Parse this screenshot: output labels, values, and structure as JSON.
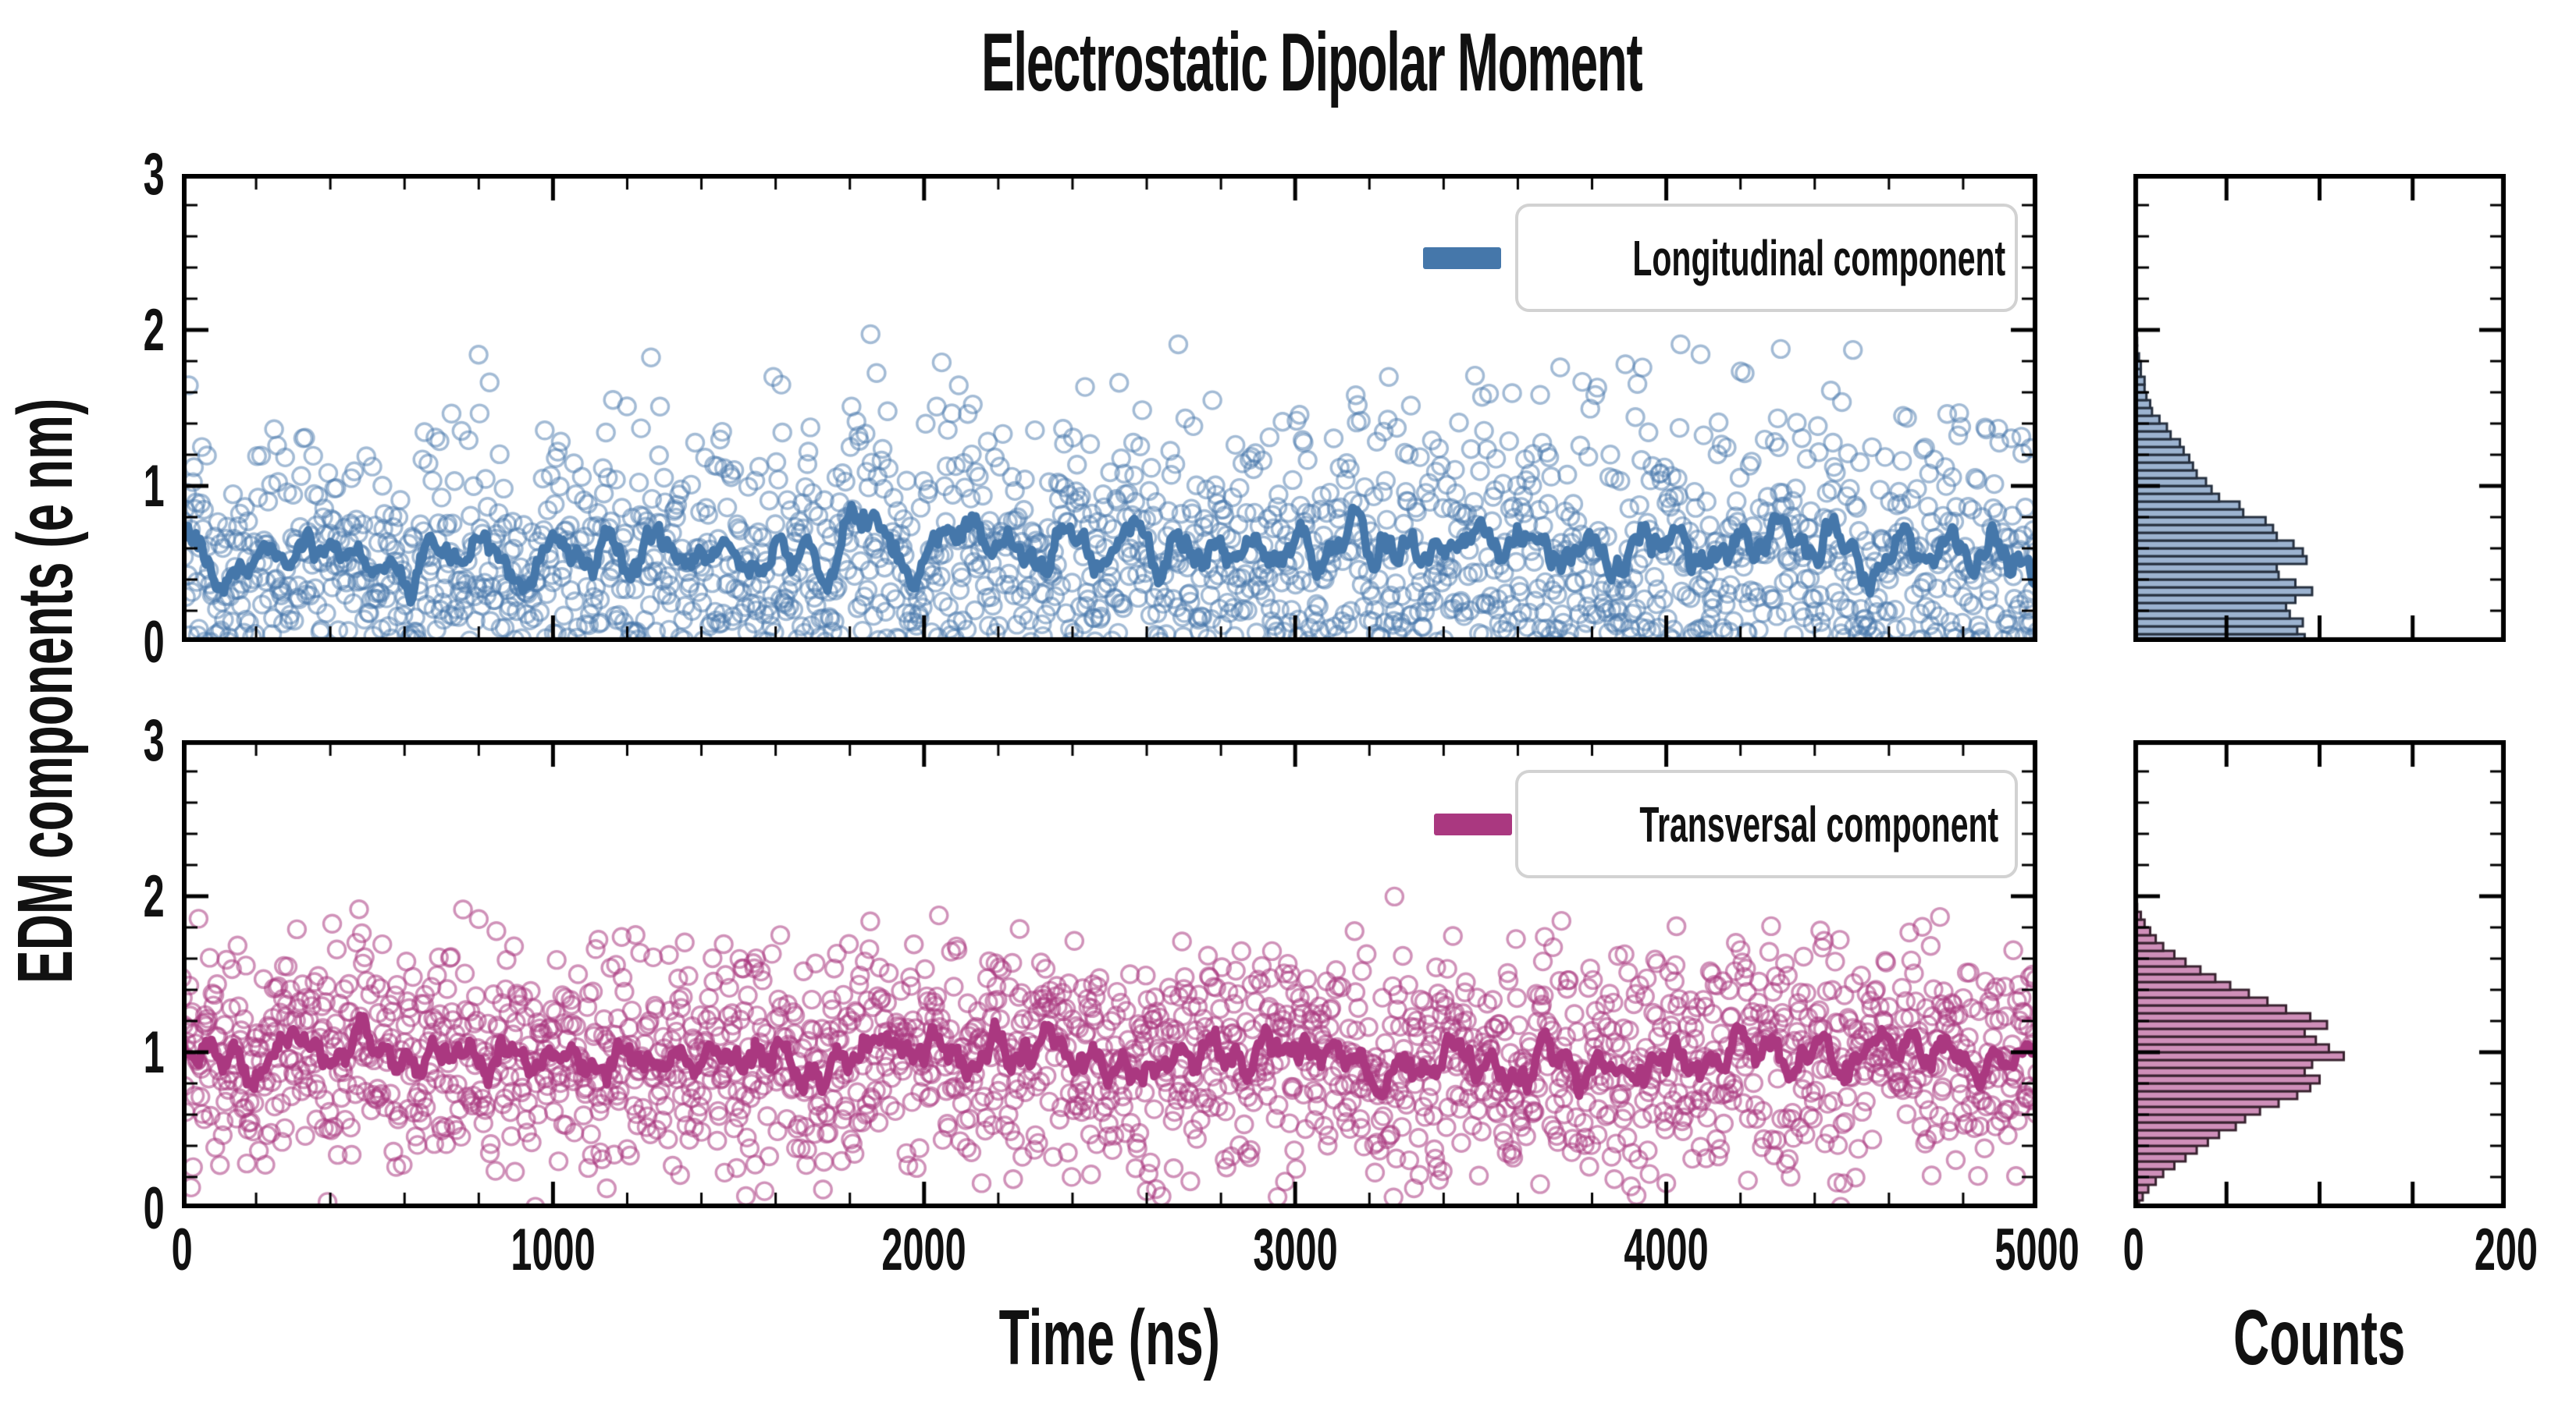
{
  "chart_data": {
    "type": "scatter+line+histogram",
    "title": "Electrostatic Dipolar Moment",
    "xlabel": "Time (ns)",
    "ylabel": "EDM components (e nm)",
    "hist_xlabel": "Counts",
    "x_range": [
      0,
      5000
    ],
    "y_range": [
      0,
      3
    ],
    "hist_count_range": [
      0,
      200
    ],
    "x_major_ticks": [
      0,
      1000,
      2000,
      3000,
      4000,
      5000
    ],
    "x_minor_step": 200,
    "y_major_ticks": [
      3,
      2,
      1,
      0
    ],
    "y_minor_step": 0.2,
    "hist_x_major_ticks": [
      0,
      50,
      100,
      150,
      200
    ],
    "hist_x_labeled_ticks": [
      0,
      200
    ],
    "bin_start": 0,
    "bin_width": 0.05,
    "grid": false,
    "legend_position": "upper right",
    "tick_direction": "in",
    "panels": [
      {
        "name": "longitudinal",
        "legend": "Longitudinal component",
        "line_color": "#4577aa",
        "scatter_color": "#4878ab",
        "scatter_alpha": 0.5,
        "hist_fill": "#9cb3d0",
        "hist_edge": "#26303f",
        "n_points": 1852,
        "mean_level": 0.58,
        "running_mean_window_ns": 60,
        "hist_counts": [
          92,
          88,
          91,
          84,
          82,
          87,
          96,
          87,
          78,
          77,
          93,
          91,
          86,
          77,
          75,
          71,
          59,
          57,
          46,
          42,
          39,
          34,
          32,
          30,
          27,
          25,
          20,
          18,
          14,
          10,
          9,
          7,
          6,
          6,
          4,
          4,
          3,
          2,
          2,
          1
        ]
      },
      {
        "name": "transversal",
        "legend": "Transversal component",
        "line_color": "#aa3880",
        "scatter_color": "#aa3880",
        "scatter_alpha": 0.55,
        "hist_fill": "#cf8fb9",
        "hist_edge": "#38222f",
        "n_points": 2001,
        "mean_level": 0.93,
        "running_mean_window_ns": 60,
        "hist_counts": [
          3,
          5,
          8,
          12,
          16,
          22,
          28,
          34,
          40,
          46,
          55,
          60,
          68,
          78,
          88,
          95,
          100,
          92,
          96,
          113,
          105,
          98,
          92,
          104,
          95,
          82,
          72,
          62,
          52,
          44,
          36,
          28,
          22,
          16,
          12,
          9,
          6,
          4,
          2,
          1
        ]
      }
    ],
    "colors": {
      "axis": "#000000",
      "text": "#111111",
      "legend_border": "#d2d2d2",
      "background": "#ffffff"
    }
  }
}
